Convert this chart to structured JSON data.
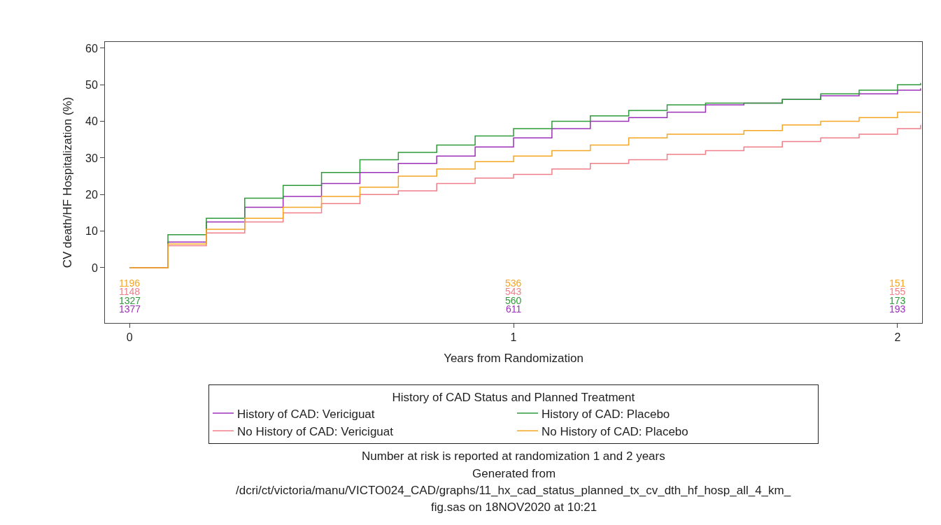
{
  "chart_data": {
    "type": "step",
    "xlabel": "Years from Randomization",
    "ylabel": "CV death/HF Hospitalization (%)",
    "legend_title": "History of CAD Status and Planned Treatment",
    "x": [
      0,
      0.1,
      0.2,
      0.3,
      0.4,
      0.5,
      0.6,
      0.7,
      0.8,
      0.9,
      1.0,
      1.1,
      1.2,
      1.3,
      1.4,
      1.5,
      1.6,
      1.7,
      1.8,
      1.9,
      2.0,
      2.06
    ],
    "series": [
      {
        "name": "History of CAD: Vericiguat",
        "color": "#9b30b8",
        "values": [
          0,
          7,
          12.5,
          16.5,
          19.5,
          23,
          26,
          28.5,
          30.5,
          33,
          35.5,
          38,
          40,
          41,
          42.5,
          44.5,
          45,
          46,
          47,
          47.5,
          48.5,
          49
        ]
      },
      {
        "name": "History of CAD: Placebo",
        "color": "#2e9a3a",
        "values": [
          0,
          9,
          13.5,
          19,
          22.5,
          26,
          29.5,
          31.5,
          33.5,
          36,
          38,
          40,
          41.5,
          43,
          44.5,
          45,
          45,
          46,
          47.5,
          48.5,
          50,
          50.5
        ]
      },
      {
        "name": "No History of CAD: Vericiguat",
        "color": "#f07f8a",
        "values": [
          0,
          6,
          9.5,
          12.5,
          15,
          17.5,
          20,
          21,
          23,
          24.5,
          25.5,
          27,
          28.5,
          29.5,
          31,
          32,
          33,
          34.5,
          35.5,
          36.5,
          38,
          39
        ]
      },
      {
        "name": "No History of CAD: Placebo",
        "color": "#f5a623",
        "values": [
          0,
          6.5,
          10.5,
          13.5,
          16.5,
          19.5,
          22,
          25,
          27,
          29,
          30.5,
          32,
          33.5,
          35.5,
          36.5,
          36.5,
          37.5,
          39,
          40,
          41,
          42.5,
          42.5
        ]
      }
    ],
    "xlim": [
      -0.064,
      2.064
    ],
    "ylim": [
      -15.1,
      61.7
    ],
    "xticks": [
      0,
      1,
      2
    ],
    "yticks": [
      0,
      10,
      20,
      30,
      40,
      50,
      60
    ],
    "legend": "bottom",
    "annotations": [
      "1196",
      "1148",
      "1327",
      "1377",
      "536",
      "543",
      "560",
      "611",
      "151",
      "155",
      "173",
      "193",
      "Number at risk is reported at randomization 1 and 2 years",
      "Generated from",
      "/dcri/ct/victoria/manu/VICTO024_CAD/graphs/11_hx_cad_status_planned_tx_cv_dth_hf_hosp_all_4_km_",
      "fig.sas on 18NOV2020 at 10:21"
    ]
  }
}
